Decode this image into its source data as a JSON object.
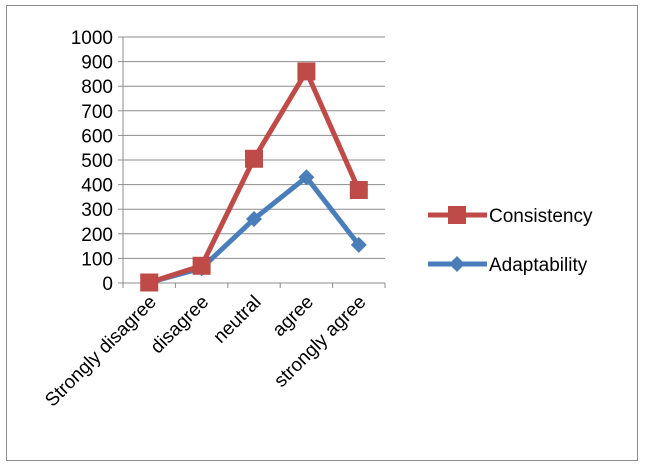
{
  "chart_data": {
    "type": "line",
    "categories": [
      "Strongly disagree",
      "disagree",
      "neutral",
      "agree",
      "strongly agree"
    ],
    "series": [
      {
        "name": "Adaptability",
        "values": [
          2,
          60,
          260,
          430,
          155
        ],
        "color": "#4a7ebb",
        "marker": "diamond"
      },
      {
        "name": "Consistency",
        "values": [
          2,
          70,
          505,
          860,
          378
        ],
        "color": "#be4b48",
        "marker": "square"
      }
    ],
    "legend_order": [
      "Consistency",
      "Adaptability"
    ],
    "ylim": [
      0,
      1000
    ],
    "yticks": [
      "0",
      "100",
      "200",
      "300",
      "400",
      "500",
      "600",
      "700",
      "800",
      "900",
      "1000"
    ],
    "ytick_values": [
      0,
      100,
      200,
      300,
      400,
      500,
      600,
      700,
      800,
      900,
      1000
    ],
    "grid": true,
    "legend_position": "right",
    "title": "",
    "xlabel": "",
    "ylabel": ""
  }
}
